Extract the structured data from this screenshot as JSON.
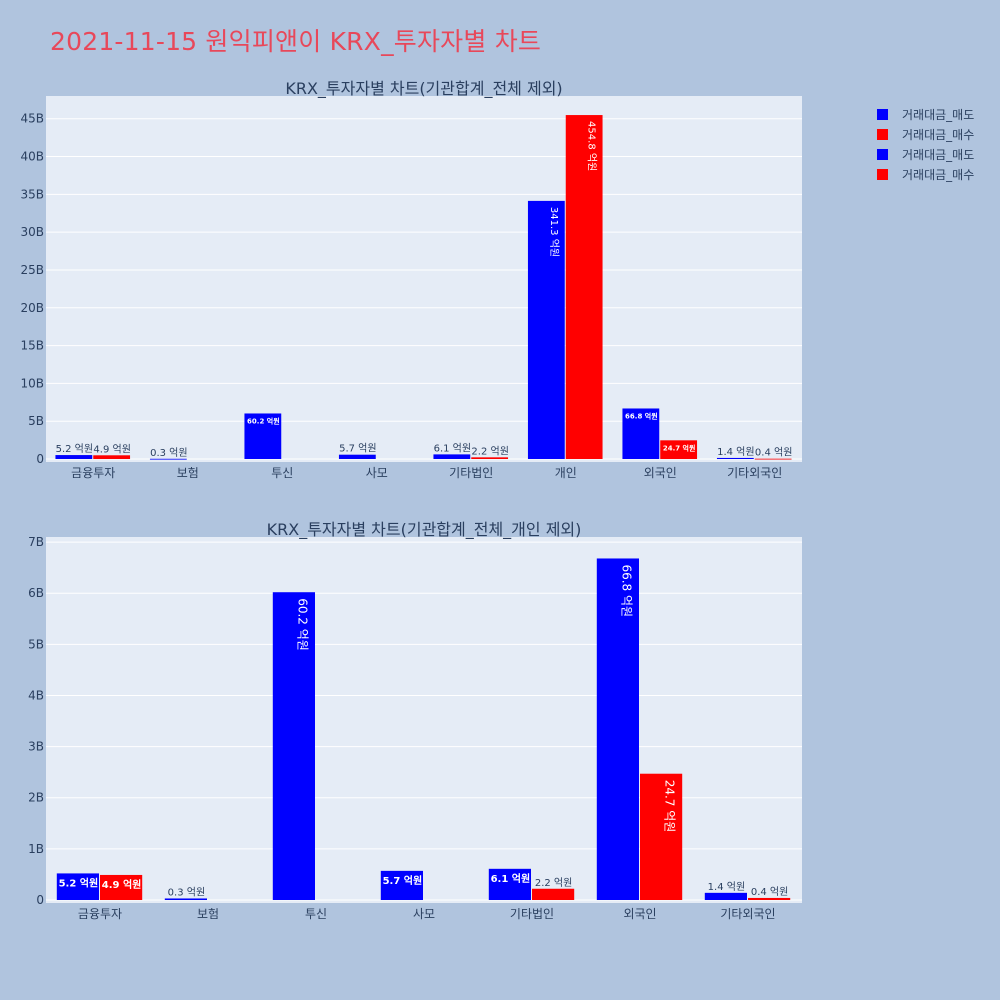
{
  "title": "2021-11-15 원익피앤이 KRX_투자자별 차트",
  "colors": {
    "sell": "#0000ff",
    "buy": "#ff0000"
  },
  "legend": [
    "거래대금_매도",
    "거래대금_매수",
    "거래대금_매도",
    "거래대금_매수"
  ],
  "chart_data": [
    {
      "type": "bar",
      "title": "KRX_투자자별 차트(기관합계_전체 제외)",
      "categories": [
        "금융투자",
        "보험",
        "투신",
        "사모",
        "기타법인",
        "개인",
        "외국인",
        "기타외국인"
      ],
      "series": [
        {
          "name": "거래대금_매도",
          "values": [
            0.52,
            0.03,
            6.02,
            0.57,
            0.61,
            34.13,
            6.68,
            0.14
          ],
          "labels": [
            "5.2 억원",
            "0.3 억원",
            "60.2 억원",
            "5.7 억원",
            "6.1 억원",
            "341.3 억원",
            "66.8 억원",
            "1.4 억원"
          ]
        },
        {
          "name": "거래대금_매수",
          "values": [
            0.49,
            0,
            0,
            0,
            0.22,
            45.48,
            2.47,
            0.04
          ],
          "labels": [
            "4.9 억원",
            "",
            "",
            "",
            "2.2 억원",
            "454.8 억원",
            "24.7 억원",
            "0.4 억원"
          ]
        }
      ],
      "yticks": [
        "0",
        "5B",
        "10B",
        "15B",
        "20B",
        "25B",
        "30B",
        "35B",
        "40B",
        "45B"
      ],
      "ylim": [
        0,
        48
      ],
      "unit": "B"
    },
    {
      "type": "bar",
      "title": "KRX_투자자별 차트(기관합계_전체_개인 제외)",
      "categories": [
        "금융투자",
        "보험",
        "투신",
        "사모",
        "기타법인",
        "외국인",
        "기타외국인"
      ],
      "series": [
        {
          "name": "거래대금_매도",
          "values": [
            0.52,
            0.03,
            6.02,
            0.57,
            0.61,
            6.68,
            0.14
          ],
          "labels": [
            "5.2 억원",
            "0.3 억원",
            "60.2 억원",
            "5.7 억원",
            "6.1 억원",
            "66.8 억원",
            "1.4 억원"
          ]
        },
        {
          "name": "거래대금_매수",
          "values": [
            0.49,
            0,
            0,
            0,
            0.22,
            2.47,
            0.04
          ],
          "labels": [
            "4.9 억원",
            "",
            "",
            "",
            "2.2 억원",
            "24.7 억원",
            "0.4 억원"
          ]
        }
      ],
      "yticks": [
        "0",
        "1B",
        "2B",
        "3B",
        "4B",
        "5B",
        "6B",
        "7B"
      ],
      "ylim": [
        0,
        7.1
      ],
      "unit": "B"
    }
  ]
}
